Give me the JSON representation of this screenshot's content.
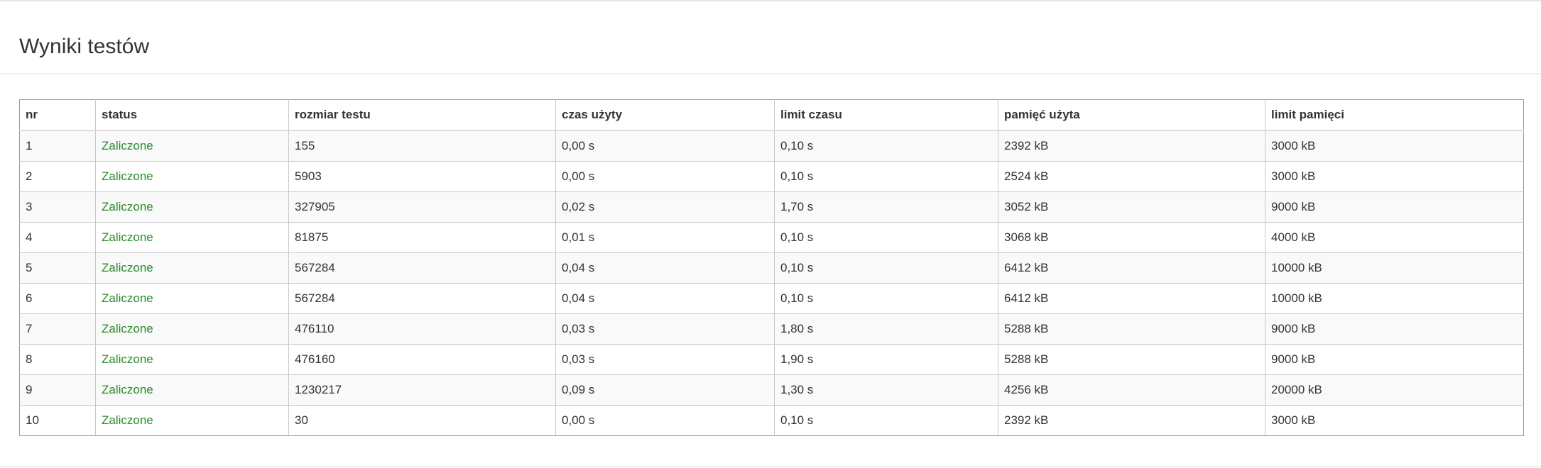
{
  "header": {
    "title": "Wyniki testów"
  },
  "table": {
    "columns": [
      "nr",
      "status",
      "rozmiar testu",
      "czas użyty",
      "limit czasu",
      "pamięć użyta",
      "limit pamięci"
    ],
    "rows": [
      [
        "1",
        "Zaliczone",
        "155",
        "0,00 s",
        "0,10 s",
        "2392 kB",
        "3000 kB"
      ],
      [
        "2",
        "Zaliczone",
        "5903",
        "0,00 s",
        "0,10 s",
        "2524 kB",
        "3000 kB"
      ],
      [
        "3",
        "Zaliczone",
        "327905",
        "0,02 s",
        "1,70 s",
        "3052 kB",
        "9000 kB"
      ],
      [
        "4",
        "Zaliczone",
        "81875",
        "0,01 s",
        "0,10 s",
        "3068 kB",
        "4000 kB"
      ],
      [
        "5",
        "Zaliczone",
        "567284",
        "0,04 s",
        "0,10 s",
        "6412 kB",
        "10000 kB"
      ],
      [
        "6",
        "Zaliczone",
        "567284",
        "0,04 s",
        "0,10 s",
        "6412 kB",
        "10000 kB"
      ],
      [
        "7",
        "Zaliczone",
        "476110",
        "0,03 s",
        "1,80 s",
        "5288 kB",
        "9000 kB"
      ],
      [
        "8",
        "Zaliczone",
        "476160",
        "0,03 s",
        "1,90 s",
        "5288 kB",
        "9000 kB"
      ],
      [
        "9",
        "Zaliczone",
        "1230217",
        "0,09 s",
        "1,30 s",
        "4256 kB",
        "20000 kB"
      ],
      [
        "10",
        "Zaliczone",
        "30",
        "0,00 s",
        "0,10 s",
        "2392 kB",
        "3000 kB"
      ]
    ]
  },
  "colors": {
    "status_passed": "#2b8a2b",
    "text": "#333333",
    "row_stripe": "#f9f9f9"
  }
}
